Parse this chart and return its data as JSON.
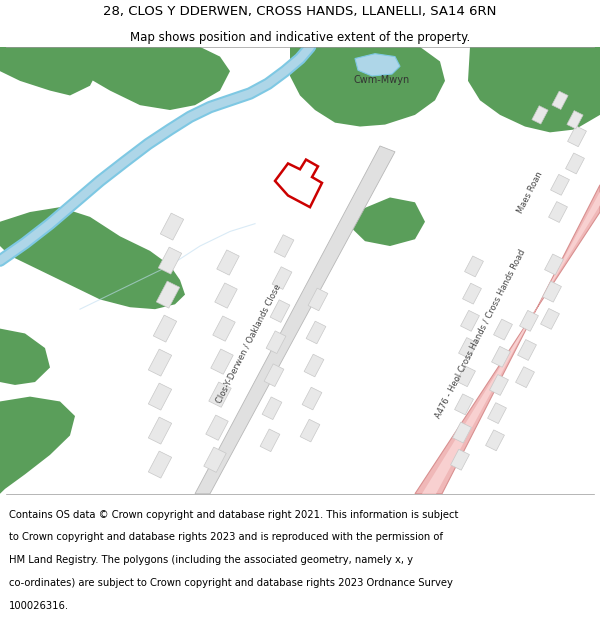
{
  "title_line1": "28, CLOS Y DDERWEN, CROSS HANDS, LLANELLI, SA14 6RN",
  "title_line2": "Map shows position and indicative extent of the property.",
  "footer_text": "Contains OS data © Crown copyright and database right 2021. This information is subject to Crown copyright and database rights 2023 and is reproduced with the permission of HM Land Registry. The polygons (including the associated geometry, namely x, y co-ordinates) are subject to Crown copyright and database rights 2023 Ordnance Survey 100026316.",
  "bg_color": "#ffffff",
  "green_color": "#5a9e5a",
  "water_color": "#aed6e8",
  "water_line_color": "#7ec8e3",
  "road_pink_fill": "#f5c8c8",
  "road_pink_edge": "#e8a8a8",
  "building_color": "#e8e8e8",
  "building_edge": "#c8c8c8",
  "road_gray_fill": "#e0e0e0",
  "road_gray_edge": "#c0c0c0",
  "property_color": "#cc0000",
  "label_color": "#444444",
  "title_fontsize": 9.5,
  "subtitle_fontsize": 8.5,
  "footer_fontsize": 7.2,
  "map_label_fontsize": 6.0
}
